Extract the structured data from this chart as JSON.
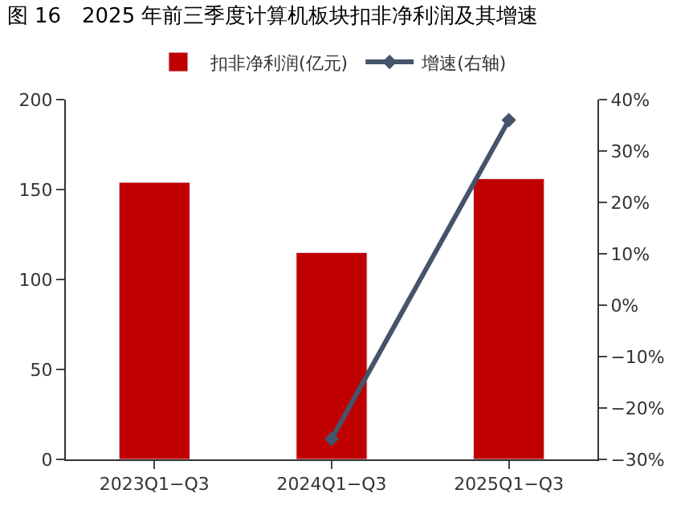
{
  "chart_data": {
    "type": "bar",
    "title": "图 16　2025 年前三季度计算机板块扣非净利润及其增速",
    "categories": [
      "2023Q1−Q3",
      "2024Q1−Q3",
      "2025Q1−Q3"
    ],
    "series": [
      {
        "name": "扣非净利润(亿元)",
        "color": "#c00000",
        "values": [
          154,
          115,
          156
        ]
      },
      {
        "name": "增速(右轴)",
        "type": "line",
        "axis": "y2",
        "color": "#44546a",
        "marker": "diamond",
        "values": [
          null,
          -26,
          36
        ]
      }
    ],
    "ylim": [
      0,
      200
    ],
    "yticks": [
      0,
      50,
      100,
      150,
      200
    ],
    "y2lim": [
      -30,
      40
    ],
    "y2ticks": [
      {
        "value": -30,
        "label": "−30%"
      },
      {
        "value": -20,
        "label": "−20%"
      },
      {
        "value": -10,
        "label": "−10%"
      },
      {
        "value": 0,
        "label": "0%"
      },
      {
        "value": 10,
        "label": "10%"
      },
      {
        "value": 20,
        "label": "20%"
      },
      {
        "value": 30,
        "label": "30%"
      },
      {
        "value": 40,
        "label": "40%"
      }
    ],
    "legend": "top"
  }
}
